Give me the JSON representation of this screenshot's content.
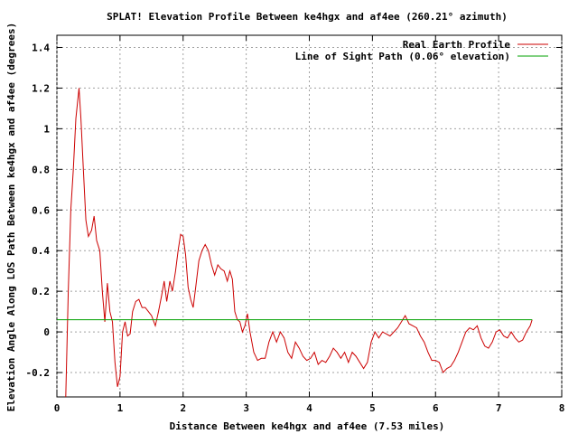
{
  "chart_data": {
    "type": "line",
    "title": "SPLAT! Elevation Profile Between ke4hgx and af4ee (260.21° azimuth)",
    "xlabel": "Distance Between ke4hgx and af4ee (7.53 miles)",
    "ylabel": "Elevation Angle Along LOS Path Between ke4hgx and af4ee (degrees)",
    "xlim": [
      0,
      8
    ],
    "ylim": [
      -0.32,
      1.46
    ],
    "x_ticks": [
      0,
      1,
      2,
      3,
      4,
      5,
      6,
      7,
      8
    ],
    "y_ticks": [
      -0.2,
      0,
      0.2,
      0.4,
      0.6,
      0.8,
      1,
      1.2,
      1.4
    ],
    "x_tick_labels": [
      "0",
      "1",
      "2",
      "3",
      "4",
      "5",
      "6",
      "7",
      "8"
    ],
    "y_tick_labels": [
      "-0.2",
      "0",
      "0.2",
      "0.4",
      "0.6",
      "0.8",
      "1",
      "1.2",
      "1.4"
    ],
    "grid": true,
    "legend_position": "top-right",
    "series": [
      {
        "name": "Real Earth Profile",
        "color": "#cc0000",
        "points": [
          [
            0.14,
            -0.32
          ],
          [
            0.18,
            0.2
          ],
          [
            0.22,
            0.6
          ],
          [
            0.26,
            0.8
          ],
          [
            0.3,
            1.05
          ],
          [
            0.35,
            1.2
          ],
          [
            0.38,
            1.05
          ],
          [
            0.42,
            0.8
          ],
          [
            0.46,
            0.55
          ],
          [
            0.5,
            0.47
          ],
          [
            0.55,
            0.5
          ],
          [
            0.59,
            0.57
          ],
          [
            0.63,
            0.45
          ],
          [
            0.68,
            0.4
          ],
          [
            0.72,
            0.2
          ],
          [
            0.76,
            0.05
          ],
          [
            0.8,
            0.24
          ],
          [
            0.84,
            0.1
          ],
          [
            0.88,
            0.05
          ],
          [
            0.92,
            -0.15
          ],
          [
            0.96,
            -0.27
          ],
          [
            1.0,
            -0.22
          ],
          [
            1.04,
            0.0
          ],
          [
            1.08,
            0.05
          ],
          [
            1.12,
            -0.02
          ],
          [
            1.16,
            -0.01
          ],
          [
            1.2,
            0.1
          ],
          [
            1.25,
            0.15
          ],
          [
            1.3,
            0.16
          ],
          [
            1.35,
            0.12
          ],
          [
            1.4,
            0.12
          ],
          [
            1.45,
            0.1
          ],
          [
            1.5,
            0.08
          ],
          [
            1.56,
            0.03
          ],
          [
            1.61,
            0.1
          ],
          [
            1.66,
            0.18
          ],
          [
            1.7,
            0.25
          ],
          [
            1.74,
            0.15
          ],
          [
            1.79,
            0.25
          ],
          [
            1.83,
            0.2
          ],
          [
            1.88,
            0.3
          ],
          [
            1.92,
            0.4
          ],
          [
            1.96,
            0.48
          ],
          [
            2.0,
            0.47
          ],
          [
            2.04,
            0.38
          ],
          [
            2.08,
            0.22
          ],
          [
            2.12,
            0.16
          ],
          [
            2.16,
            0.12
          ],
          [
            2.2,
            0.22
          ],
          [
            2.25,
            0.35
          ],
          [
            2.3,
            0.4
          ],
          [
            2.35,
            0.43
          ],
          [
            2.4,
            0.4
          ],
          [
            2.45,
            0.33
          ],
          [
            2.5,
            0.28
          ],
          [
            2.55,
            0.33
          ],
          [
            2.6,
            0.31
          ],
          [
            2.65,
            0.3
          ],
          [
            2.7,
            0.25
          ],
          [
            2.74,
            0.3
          ],
          [
            2.78,
            0.26
          ],
          [
            2.82,
            0.1
          ],
          [
            2.86,
            0.06
          ],
          [
            2.9,
            0.05
          ],
          [
            2.94,
            0.0
          ],
          [
            2.98,
            0.03
          ],
          [
            3.02,
            0.09
          ],
          [
            3.06,
            0.0
          ],
          [
            3.12,
            -0.1
          ],
          [
            3.18,
            -0.14
          ],
          [
            3.24,
            -0.13
          ],
          [
            3.3,
            -0.13
          ],
          [
            3.36,
            -0.05
          ],
          [
            3.42,
            0.0
          ],
          [
            3.48,
            -0.05
          ],
          [
            3.54,
            0.0
          ],
          [
            3.6,
            -0.03
          ],
          [
            3.66,
            -0.1
          ],
          [
            3.72,
            -0.13
          ],
          [
            3.78,
            -0.05
          ],
          [
            3.84,
            -0.08
          ],
          [
            3.9,
            -0.12
          ],
          [
            3.96,
            -0.14
          ],
          [
            4.02,
            -0.13
          ],
          [
            4.08,
            -0.1
          ],
          [
            4.14,
            -0.16
          ],
          [
            4.2,
            -0.14
          ],
          [
            4.26,
            -0.15
          ],
          [
            4.32,
            -0.12
          ],
          [
            4.38,
            -0.08
          ],
          [
            4.44,
            -0.1
          ],
          [
            4.5,
            -0.13
          ],
          [
            4.56,
            -0.1
          ],
          [
            4.62,
            -0.15
          ],
          [
            4.68,
            -0.1
          ],
          [
            4.74,
            -0.12
          ],
          [
            4.8,
            -0.15
          ],
          [
            4.86,
            -0.18
          ],
          [
            4.92,
            -0.15
          ],
          [
            4.98,
            -0.05
          ],
          [
            5.04,
            0.0
          ],
          [
            5.1,
            -0.03
          ],
          [
            5.16,
            0.0
          ],
          [
            5.22,
            -0.01
          ],
          [
            5.28,
            -0.02
          ],
          [
            5.34,
            0.0
          ],
          [
            5.4,
            0.02
          ],
          [
            5.46,
            0.05
          ],
          [
            5.52,
            0.08
          ],
          [
            5.58,
            0.04
          ],
          [
            5.64,
            0.03
          ],
          [
            5.7,
            0.02
          ],
          [
            5.76,
            -0.02
          ],
          [
            5.82,
            -0.05
          ],
          [
            5.88,
            -0.1
          ],
          [
            5.94,
            -0.14
          ],
          [
            6.0,
            -0.14
          ],
          [
            6.06,
            -0.15
          ],
          [
            6.12,
            -0.2
          ],
          [
            6.18,
            -0.18
          ],
          [
            6.24,
            -0.17
          ],
          [
            6.3,
            -0.14
          ],
          [
            6.36,
            -0.1
          ],
          [
            6.42,
            -0.05
          ],
          [
            6.48,
            0.0
          ],
          [
            6.54,
            0.02
          ],
          [
            6.6,
            0.01
          ],
          [
            6.66,
            0.03
          ],
          [
            6.72,
            -0.03
          ],
          [
            6.78,
            -0.07
          ],
          [
            6.84,
            -0.08
          ],
          [
            6.9,
            -0.05
          ],
          [
            6.96,
            0.0
          ],
          [
            7.02,
            0.01
          ],
          [
            7.08,
            -0.02
          ],
          [
            7.14,
            -0.03
          ],
          [
            7.2,
            0.0
          ],
          [
            7.26,
            -0.03
          ],
          [
            7.32,
            -0.05
          ],
          [
            7.38,
            -0.04
          ],
          [
            7.44,
            0.0
          ],
          [
            7.5,
            0.03
          ],
          [
            7.53,
            0.06
          ]
        ]
      },
      {
        "name": "Line of Sight Path (0.06° elevation)",
        "color": "#00a000",
        "points": [
          [
            0.0,
            0.06
          ],
          [
            7.53,
            0.06
          ]
        ]
      }
    ]
  }
}
